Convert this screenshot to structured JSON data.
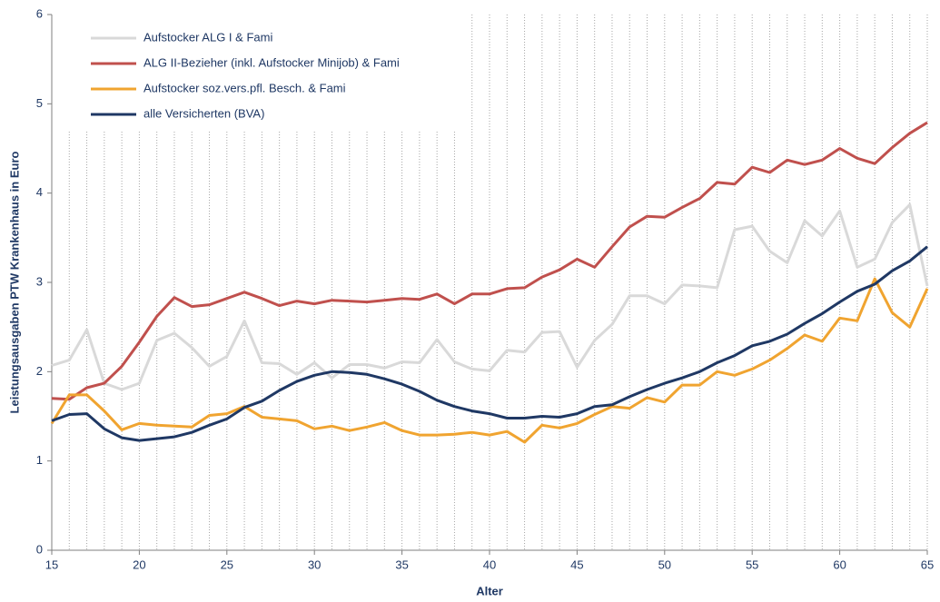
{
  "chart_data": {
    "type": "line",
    "xlabel": "Alter",
    "ylabel": "Leistungsausgaben PTW Krankenhaus in Euro",
    "x": [
      15,
      16,
      17,
      18,
      19,
      20,
      21,
      22,
      23,
      24,
      25,
      26,
      27,
      28,
      29,
      30,
      31,
      32,
      33,
      34,
      35,
      36,
      37,
      38,
      39,
      40,
      41,
      42,
      43,
      44,
      45,
      46,
      47,
      48,
      49,
      50,
      51,
      52,
      53,
      54,
      55,
      56,
      57,
      58,
      59,
      60,
      61,
      62,
      63,
      64,
      65
    ],
    "xlim": [
      15,
      65
    ],
    "xticks": [
      15,
      20,
      25,
      30,
      35,
      40,
      45,
      50,
      55,
      60,
      65
    ],
    "ylim": [
      0,
      6
    ],
    "yticks": [
      0,
      1,
      2,
      3,
      4,
      5,
      6
    ],
    "grid": true,
    "legend": "upper left",
    "series": [
      {
        "name": "Aufstocker ALG I & Fami",
        "color": "#d9d9d9",
        "values": [
          2.07,
          2.13,
          2.47,
          1.87,
          1.8,
          1.87,
          2.35,
          2.43,
          2.27,
          2.06,
          2.17,
          2.57,
          2.1,
          2.09,
          1.97,
          2.1,
          1.93,
          2.08,
          2.08,
          2.04,
          2.11,
          2.1,
          2.36,
          2.11,
          2.03,
          2.01,
          2.24,
          2.22,
          2.44,
          2.45,
          2.05,
          2.35,
          2.53,
          2.85,
          2.85,
          2.76,
          2.97,
          2.96,
          2.94,
          3.59,
          3.63,
          3.35,
          3.22,
          3.69,
          3.52,
          3.8,
          3.17,
          3.26,
          3.67,
          3.87,
          2.96
        ]
      },
      {
        "name": "ALG II-Bezieher (inkl. Aufstocker Minijob) & Fami",
        "color": "#c0504d",
        "values": [
          1.7,
          1.69,
          1.82,
          1.87,
          2.06,
          2.33,
          2.62,
          2.83,
          2.73,
          2.75,
          2.82,
          2.89,
          2.82,
          2.74,
          2.79,
          2.76,
          2.8,
          2.79,
          2.78,
          2.8,
          2.82,
          2.81,
          2.87,
          2.76,
          2.87,
          2.87,
          2.93,
          2.94,
          3.06,
          3.14,
          3.26,
          3.17,
          3.4,
          3.62,
          3.74,
          3.73,
          3.84,
          3.94,
          4.12,
          4.1,
          4.29,
          4.23,
          4.37,
          4.32,
          4.37,
          4.5,
          4.39,
          4.33,
          4.51,
          4.67,
          4.79
        ]
      },
      {
        "name": "Aufstocker soz.vers.pfl. Besch. & Fami",
        "color": "#f0a430",
        "values": [
          1.42,
          1.74,
          1.74,
          1.56,
          1.35,
          1.42,
          1.4,
          1.39,
          1.38,
          1.51,
          1.53,
          1.61,
          1.49,
          1.47,
          1.45,
          1.36,
          1.39,
          1.34,
          1.38,
          1.43,
          1.34,
          1.29,
          1.29,
          1.3,
          1.32,
          1.29,
          1.33,
          1.21,
          1.4,
          1.37,
          1.42,
          1.52,
          1.61,
          1.59,
          1.71,
          1.66,
          1.85,
          1.85,
          2.0,
          1.96,
          2.03,
          2.13,
          2.26,
          2.41,
          2.34,
          2.6,
          2.57,
          3.04,
          2.66,
          2.5,
          2.93
        ]
      },
      {
        "name": "alle Versicherten (BVA)",
        "color": "#1f3864",
        "values": [
          1.45,
          1.52,
          1.53,
          1.36,
          1.26,
          1.23,
          1.25,
          1.27,
          1.32,
          1.4,
          1.47,
          1.6,
          1.67,
          1.79,
          1.89,
          1.96,
          2.0,
          1.99,
          1.97,
          1.92,
          1.86,
          1.78,
          1.68,
          1.61,
          1.56,
          1.53,
          1.48,
          1.48,
          1.5,
          1.49,
          1.53,
          1.61,
          1.63,
          1.72,
          1.8,
          1.87,
          1.93,
          2.0,
          2.1,
          2.18,
          2.29,
          2.34,
          2.42,
          2.54,
          2.65,
          2.78,
          2.9,
          2.98,
          3.13,
          3.24,
          3.4
        ]
      }
    ]
  }
}
